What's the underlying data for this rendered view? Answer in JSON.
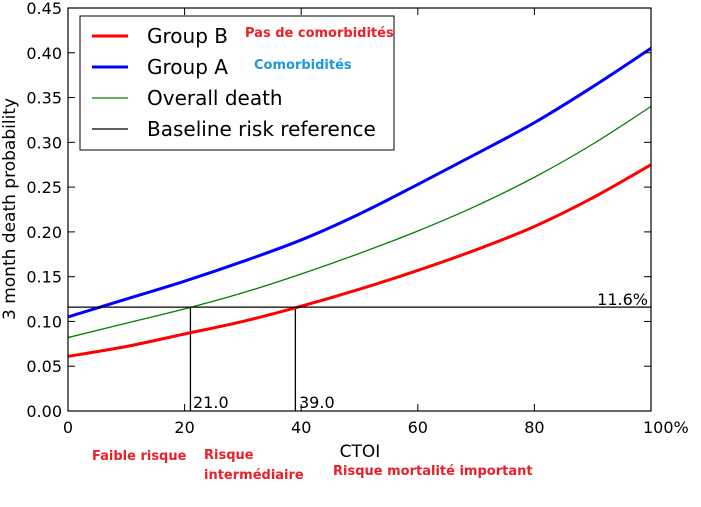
{
  "chart_data": {
    "type": "line",
    "xlabel": "CTOI",
    "ylabel": "3 month death probability",
    "xlim": [
      0,
      100
    ],
    "ylim": [
      0,
      0.45
    ],
    "x_ticks": [
      "0",
      "20",
      "40",
      "60",
      "80",
      "100%"
    ],
    "y_ticks": [
      "0.00",
      "0.05",
      "0.10",
      "0.15",
      "0.20",
      "0.25",
      "0.30",
      "0.35",
      "0.40",
      "0.45"
    ],
    "x_tick_values": [
      0,
      20,
      40,
      60,
      80,
      100
    ],
    "y_tick_values": [
      0,
      0.05,
      0.1,
      0.15,
      0.2,
      0.25,
      0.3,
      0.35,
      0.4,
      0.45
    ],
    "series": [
      {
        "name": "Group B",
        "color": "#ff0000",
        "width": 3,
        "x": [
          0,
          10,
          20,
          30,
          40,
          50,
          60,
          70,
          80,
          90,
          100
        ],
        "y": [
          0.061,
          0.072,
          0.086,
          0.1,
          0.117,
          0.136,
          0.157,
          0.18,
          0.206,
          0.238,
          0.275
        ]
      },
      {
        "name": "Group A",
        "color": "#0000ff",
        "width": 3,
        "x": [
          0,
          10,
          20,
          30,
          40,
          50,
          60,
          70,
          80,
          90,
          100
        ],
        "y": [
          0.105,
          0.125,
          0.145,
          0.167,
          0.191,
          0.22,
          0.253,
          0.287,
          0.322,
          0.362,
          0.405
        ]
      },
      {
        "name": "Overall death",
        "color": "#008000",
        "width": 1.3,
        "x": [
          0,
          10,
          20,
          30,
          40,
          50,
          60,
          70,
          80,
          90,
          100
        ],
        "y": [
          0.082,
          0.098,
          0.114,
          0.132,
          0.153,
          0.176,
          0.201,
          0.229,
          0.261,
          0.298,
          0.34
        ]
      },
      {
        "name": "Baseline risk reference",
        "color": "#000000",
        "width": 1.3,
        "x": [
          0,
          100
        ],
        "y": [
          0.116,
          0.116
        ]
      }
    ],
    "reference_drops": [
      {
        "x": 21.0,
        "y": 0.116,
        "label": "21.0"
      },
      {
        "x": 39.0,
        "y": 0.116,
        "label": "39.0"
      }
    ],
    "baseline_label": "11.6%",
    "legend_position": "top-left",
    "legend_annotations": [
      {
        "series": "Group B",
        "text": "Pas de comorbidités",
        "color": "#e8202a"
      },
      {
        "series": "Group A",
        "text": "Comorbidités",
        "color": "#1a9ad8"
      }
    ],
    "zone_labels": [
      {
        "lines": [
          "Faible risque"
        ]
      },
      {
        "lines": [
          "Risque",
          "intermédiaire"
        ]
      },
      {
        "lines": [
          "Risque mortalité important"
        ]
      }
    ]
  }
}
